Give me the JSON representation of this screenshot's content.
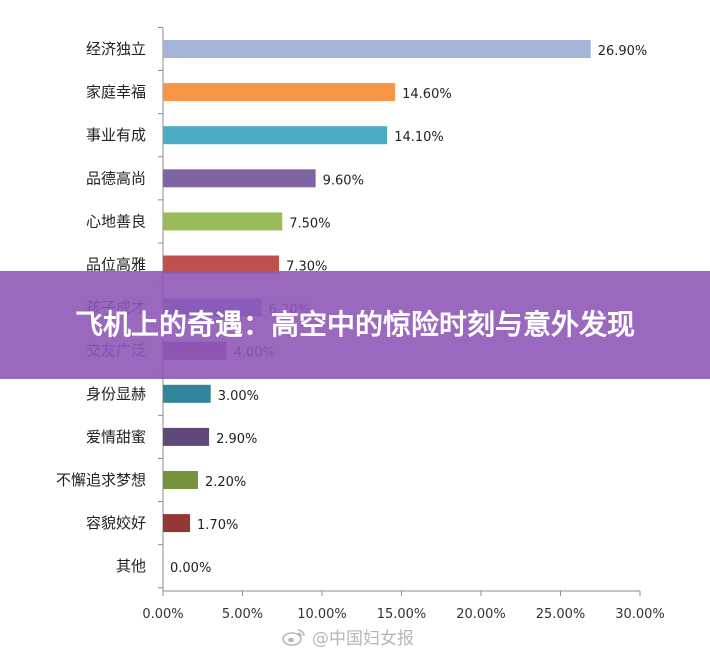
{
  "chart_data": {
    "type": "bar",
    "orientation": "horizontal",
    "categories": [
      "经济独立",
      "家庭幸福",
      "事业有成",
      "品德高尚",
      "心地善良",
      "品位高雅",
      "孩子成才",
      "交友广泛",
      "身份显赫",
      "爱情甜蜜",
      "不懈追求梦想",
      "容貌姣好",
      "其他"
    ],
    "values": [
      26.9,
      14.6,
      14.1,
      9.6,
      7.5,
      7.3,
      6.2,
      4.0,
      3.0,
      2.9,
      2.2,
      1.7,
      0.0
    ],
    "value_labels": [
      "26.90%",
      "14.60%",
      "14.10%",
      "9.60%",
      "7.50%",
      "7.30%",
      "6.20%",
      "4.00%",
      "3.00%",
      "2.90%",
      "2.20%",
      "1.70%",
      "0.00%"
    ],
    "colors": [
      "#a5b4d6",
      "#f79646",
      "#4bacc6",
      "#8064a2",
      "#9bbb59",
      "#c0504d",
      "#4f81bd",
      "#8c3c7a",
      "#31849b",
      "#60497a",
      "#76923c",
      "#953735",
      "#7f7f7f"
    ],
    "xlim": [
      0,
      30
    ],
    "x_ticks": [
      "0.00%",
      "5.00%",
      "10.00%",
      "15.00%",
      "20.00%",
      "25.00%",
      "30.00%"
    ],
    "grid": false,
    "legend": "none"
  },
  "banner": {
    "title": "飞机上的奇遇：高空中的惊险时刻与意外发现"
  },
  "watermark": {
    "text": "@中国妇女报",
    "icon": "weibo-icon"
  }
}
